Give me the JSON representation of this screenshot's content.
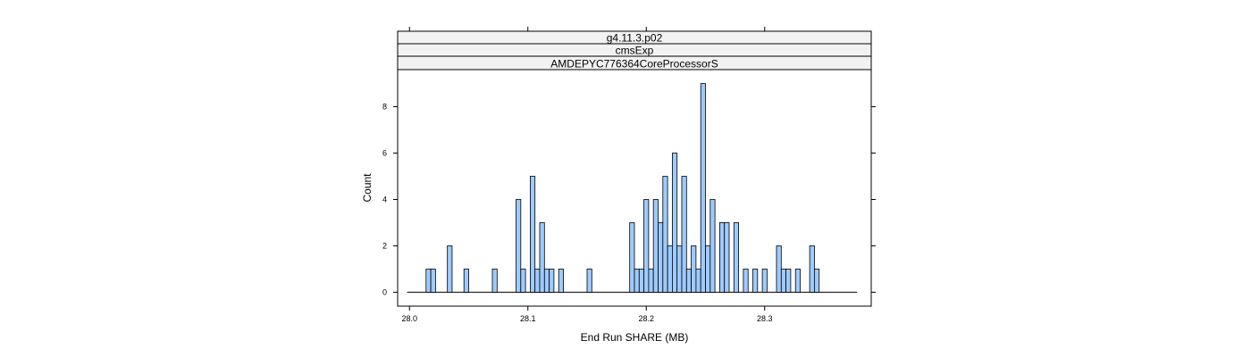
{
  "chart_data": {
    "type": "bar",
    "strips": [
      "g4.11.3.p02",
      "cmsExp",
      "AMDEPYC776364CoreProcessorS"
    ],
    "xlabel": "End Run SHARE (MB)",
    "ylabel": "Count",
    "xlim": [
      27.99,
      28.39
    ],
    "ylim": [
      -0.6,
      9.6
    ],
    "x_ticks": [
      28.0,
      28.1,
      28.2,
      28.3
    ],
    "x_tick_labels": [
      "28.0",
      "28.1",
      "28.2",
      "28.3"
    ],
    "y_ticks": [
      0,
      2,
      4,
      6,
      8
    ],
    "y_tick_labels": [
      "0",
      "2",
      "4",
      "6",
      "8"
    ],
    "bin_width": 0.004,
    "bin_range": [
      27.998,
      28.378
    ],
    "grid": false,
    "colors": {
      "bar_fill": "#9ecbff",
      "bar_stroke": "#000000"
    },
    "bins": [
      {
        "x": 28.014,
        "count": 1
      },
      {
        "x": 28.018,
        "count": 1
      },
      {
        "x": 28.032,
        "count": 2
      },
      {
        "x": 28.046,
        "count": 1
      },
      {
        "x": 28.07,
        "count": 1
      },
      {
        "x": 28.09,
        "count": 4
      },
      {
        "x": 28.094,
        "count": 1
      },
      {
        "x": 28.102,
        "count": 5
      },
      {
        "x": 28.106,
        "count": 1
      },
      {
        "x": 28.11,
        "count": 3
      },
      {
        "x": 28.114,
        "count": 1
      },
      {
        "x": 28.118,
        "count": 1
      },
      {
        "x": 28.126,
        "count": 1
      },
      {
        "x": 28.15,
        "count": 1
      },
      {
        "x": 28.186,
        "count": 3
      },
      {
        "x": 28.19,
        "count": 1
      },
      {
        "x": 28.194,
        "count": 1
      },
      {
        "x": 28.198,
        "count": 4
      },
      {
        "x": 28.202,
        "count": 1
      },
      {
        "x": 28.206,
        "count": 4
      },
      {
        "x": 28.21,
        "count": 3
      },
      {
        "x": 28.214,
        "count": 5
      },
      {
        "x": 28.218,
        "count": 2
      },
      {
        "x": 28.222,
        "count": 6
      },
      {
        "x": 28.226,
        "count": 2
      },
      {
        "x": 28.23,
        "count": 5
      },
      {
        "x": 28.234,
        "count": 1
      },
      {
        "x": 28.238,
        "count": 2
      },
      {
        "x": 28.242,
        "count": 1
      },
      {
        "x": 28.246,
        "count": 9
      },
      {
        "x": 28.25,
        "count": 2
      },
      {
        "x": 28.254,
        "count": 4
      },
      {
        "x": 28.262,
        "count": 3
      },
      {
        "x": 28.266,
        "count": 3
      },
      {
        "x": 28.274,
        "count": 3
      },
      {
        "x": 28.282,
        "count": 1
      },
      {
        "x": 28.29,
        "count": 1
      },
      {
        "x": 28.298,
        "count": 1
      },
      {
        "x": 28.31,
        "count": 2
      },
      {
        "x": 28.314,
        "count": 1
      },
      {
        "x": 28.318,
        "count": 1
      },
      {
        "x": 28.326,
        "count": 1
      },
      {
        "x": 28.338,
        "count": 2
      },
      {
        "x": 28.342,
        "count": 1
      }
    ]
  }
}
